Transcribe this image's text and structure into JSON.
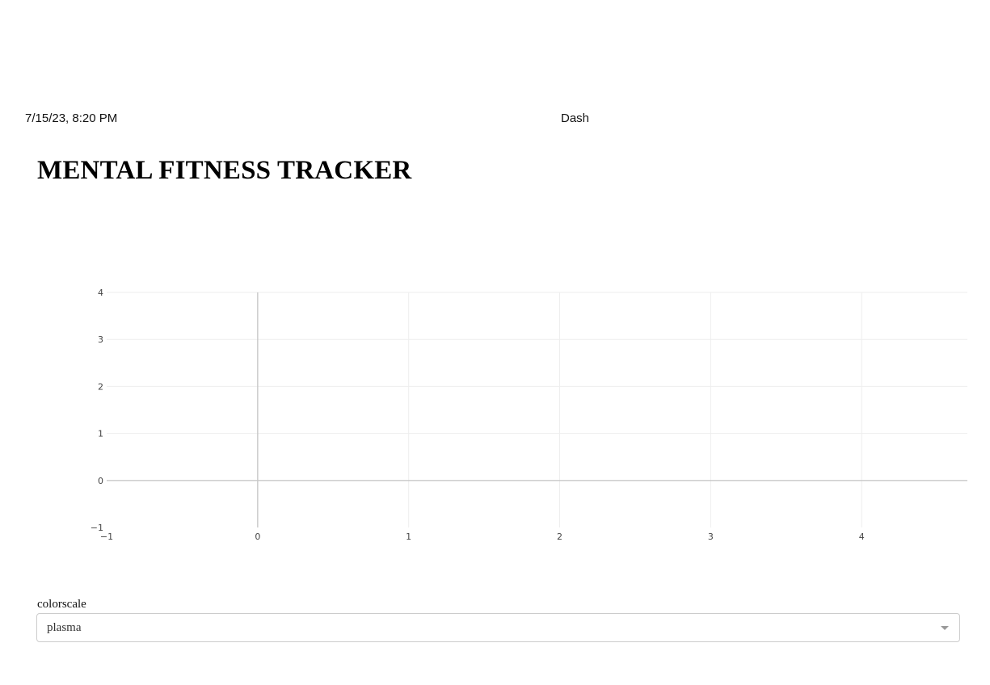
{
  "print_header": {
    "datetime": "7/15/23, 8:20 PM",
    "app_title": "Dash"
  },
  "page": {
    "title": "MENTAL FITNESS TRACKER"
  },
  "controls": {
    "colorscale_label": "colorscale",
    "colorscale_value": "plasma"
  },
  "chart_data": {
    "type": "scatter",
    "series": [],
    "xlim": [
      -1,
      4.7
    ],
    "ylim": [
      -1,
      4
    ],
    "x_ticks": [
      "−1",
      "0",
      "1",
      "2",
      "3",
      "4"
    ],
    "y_ticks": [
      "−1",
      "0",
      "1",
      "2",
      "3",
      "4"
    ],
    "grid": true
  }
}
